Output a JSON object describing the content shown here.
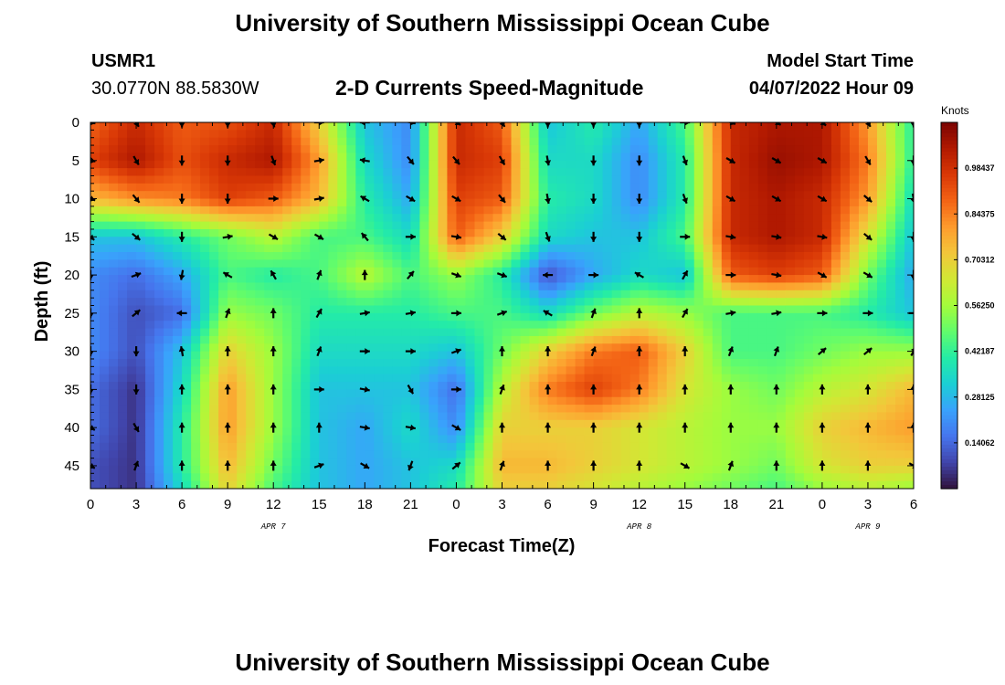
{
  "header": {
    "title": "University of Southern Mississippi Ocean Cube",
    "station_id": "USMR1",
    "coordinates": "30.0770N  88.5830W",
    "subtitle": "2-D Currents Speed-Magnitude",
    "model_start_label": "Model Start Time",
    "model_start_value": "04/07/2022 Hour 09"
  },
  "footer": {
    "title": "University of Southern Mississippi Ocean Cube"
  },
  "colors": {
    "colormap": [
      "#30123b",
      "#4145ab",
      "#4675ed",
      "#39a2fc",
      "#1bcfd4",
      "#24eca6",
      "#61fc6c",
      "#a4fc3b",
      "#d1e834",
      "#f3c63a",
      "#fe9b2d",
      "#f36315",
      "#d93806",
      "#b11901",
      "#7a0402"
    ],
    "arrow": "#000000"
  },
  "chart_data": {
    "type": "heatmap",
    "xlabel": "Forecast Time(Z)",
    "ylabel": "Depth (ft)",
    "x_tick_labels": [
      "0",
      "3",
      "6",
      "9",
      "12",
      "15",
      "18",
      "21",
      "0",
      "3",
      "6",
      "9",
      "12",
      "15",
      "18",
      "21",
      "0",
      "3",
      "6"
    ],
    "y_tick_labels": [
      "0",
      "5",
      "10",
      "15",
      "20",
      "25",
      "30",
      "35",
      "40",
      "45"
    ],
    "date_labels": [
      {
        "label": "APR 7",
        "forecast_hour": 12
      },
      {
        "label": "APR 8",
        "forecast_hour": 36
      },
      {
        "label": "APR 9",
        "forecast_hour": 51
      }
    ],
    "xlim": [
      0,
      54
    ],
    "ylim": [
      0,
      48
    ],
    "colorbar": {
      "title": "Knots",
      "ticks": [
        "0.98437",
        "0.84375",
        "0.70312",
        "0.56250",
        "0.42187",
        "0.28125",
        "0.14062"
      ],
      "range": [
        0,
        1.125
      ]
    },
    "speed_depths_ft": [
      0,
      5,
      10,
      15,
      20,
      25,
      30,
      35,
      40,
      45,
      48
    ],
    "speed_times_h": [
      0,
      3,
      6,
      9,
      12,
      15,
      18,
      21,
      24,
      27,
      30,
      33,
      36,
      39,
      42,
      45,
      48,
      51,
      54
    ],
    "speed_knots": [
      [
        0.88,
        1.0,
        0.9,
        0.92,
        1.0,
        0.7,
        0.3,
        0.2,
        1.0,
        0.9,
        0.3,
        0.4,
        0.25,
        0.45,
        1.0,
        1.05,
        1.05,
        0.8,
        0.4
      ],
      [
        0.95,
        1.05,
        0.92,
        1.0,
        1.05,
        0.8,
        0.35,
        0.2,
        1.0,
        0.95,
        0.35,
        0.35,
        0.2,
        0.4,
        1.0,
        1.08,
        1.05,
        0.85,
        0.4
      ],
      [
        0.75,
        0.82,
        0.85,
        0.95,
        0.9,
        0.75,
        0.4,
        0.25,
        0.95,
        0.9,
        0.4,
        0.35,
        0.2,
        0.4,
        1.0,
        1.05,
        1.0,
        0.8,
        0.35
      ],
      [
        0.3,
        0.3,
        0.4,
        0.5,
        0.6,
        0.45,
        0.45,
        0.35,
        0.9,
        0.7,
        0.35,
        0.3,
        0.3,
        0.45,
        1.0,
        1.05,
        1.0,
        0.65,
        0.3
      ],
      [
        0.2,
        0.15,
        0.25,
        0.45,
        0.4,
        0.45,
        0.6,
        0.45,
        0.55,
        0.4,
        0.1,
        0.25,
        0.35,
        0.3,
        0.9,
        0.95,
        0.9,
        0.5,
        0.25
      ],
      [
        0.2,
        0.1,
        0.15,
        0.55,
        0.5,
        0.4,
        0.4,
        0.4,
        0.45,
        0.45,
        0.35,
        0.5,
        0.6,
        0.55,
        0.45,
        0.45,
        0.45,
        0.4,
        0.3
      ],
      [
        0.2,
        0.1,
        0.3,
        0.7,
        0.55,
        0.35,
        0.35,
        0.35,
        0.3,
        0.5,
        0.7,
        0.85,
        0.9,
        0.7,
        0.45,
        0.45,
        0.5,
        0.55,
        0.55
      ],
      [
        0.15,
        0.05,
        0.35,
        0.8,
        0.55,
        0.3,
        0.3,
        0.3,
        0.15,
        0.6,
        0.85,
        0.95,
        0.85,
        0.65,
        0.55,
        0.5,
        0.6,
        0.65,
        0.75
      ],
      [
        0.15,
        0.05,
        0.4,
        0.8,
        0.55,
        0.3,
        0.25,
        0.35,
        0.2,
        0.7,
        0.7,
        0.7,
        0.65,
        0.6,
        0.55,
        0.55,
        0.7,
        0.75,
        0.8
      ],
      [
        0.1,
        0.05,
        0.4,
        0.75,
        0.5,
        0.3,
        0.25,
        0.3,
        0.35,
        0.75,
        0.75,
        0.7,
        0.65,
        0.6,
        0.55,
        0.5,
        0.65,
        0.7,
        0.7
      ],
      [
        0.1,
        0.05,
        0.35,
        0.7,
        0.45,
        0.3,
        0.25,
        0.3,
        0.4,
        0.7,
        0.7,
        0.65,
        0.6,
        0.55,
        0.5,
        0.45,
        0.55,
        0.6,
        0.55
      ]
    ],
    "arrow_times_h": [
      0,
      3,
      6,
      9,
      12,
      15,
      18,
      21,
      24,
      27,
      30,
      33,
      36,
      39,
      42,
      45,
      48,
      51,
      54
    ],
    "arrow_depths_ft": [
      0,
      5,
      10,
      15,
      20,
      25,
      30,
      35,
      40,
      45
    ],
    "arrow_directions_deg": [
      [
        100,
        150,
        180,
        180,
        170,
        90,
        270,
        100,
        120,
        150,
        180,
        180,
        180,
        90,
        110,
        120,
        130,
        150,
        180
      ],
      [
        100,
        150,
        180,
        180,
        160,
        80,
        280,
        140,
        140,
        150,
        170,
        180,
        180,
        160,
        120,
        120,
        120,
        150,
        180
      ],
      [
        110,
        140,
        180,
        180,
        90,
        80,
        300,
        120,
        120,
        140,
        170,
        180,
        180,
        160,
        120,
        120,
        120,
        130,
        170
      ],
      [
        130,
        130,
        180,
        80,
        120,
        120,
        320,
        90,
        100,
        130,
        160,
        180,
        180,
        90,
        100,
        100,
        100,
        130,
        180
      ],
      [
        180,
        70,
        190,
        300,
        330,
        20,
        0,
        40,
        110,
        110,
        270,
        90,
        300,
        30,
        90,
        100,
        120,
        120,
        180
      ],
      [
        180,
        50,
        270,
        20,
        0,
        30,
        80,
        80,
        90,
        70,
        300,
        20,
        0,
        30,
        80,
        80,
        90,
        90,
        90
      ],
      [
        180,
        180,
        350,
        0,
        0,
        20,
        90,
        90,
        70,
        0,
        0,
        20,
        0,
        0,
        20,
        20,
        50,
        50,
        30
      ],
      [
        180,
        180,
        0,
        0,
        0,
        90,
        100,
        150,
        90,
        20,
        0,
        0,
        0,
        0,
        0,
        0,
        0,
        0,
        0
      ],
      [
        120,
        150,
        0,
        0,
        0,
        0,
        100,
        100,
        120,
        0,
        0,
        0,
        0,
        0,
        0,
        0,
        0,
        0,
        0
      ],
      [
        120,
        20,
        0,
        0,
        0,
        70,
        120,
        200,
        50,
        20,
        0,
        0,
        0,
        120,
        20,
        0,
        0,
        0,
        120
      ]
    ]
  }
}
